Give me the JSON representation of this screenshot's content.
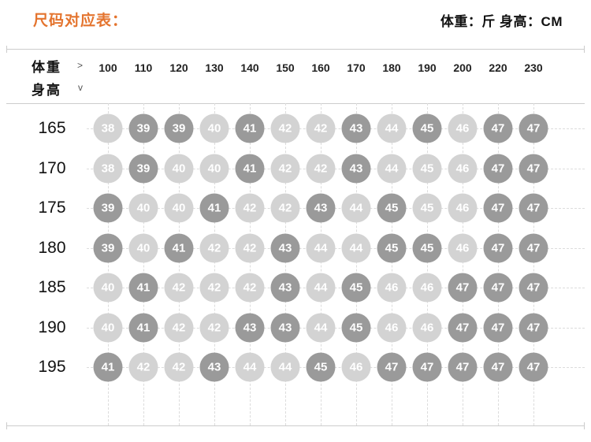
{
  "header": {
    "title": "尺码对应表：",
    "units": "体重：斤 身高：CM"
  },
  "table": {
    "weight_label": "体重",
    "weight_arrow": ">",
    "height_label": "身高",
    "height_arrow": "v"
  },
  "colors": {
    "accent": "#e4742e",
    "circle_light": "#d3d3d3",
    "circle_dark": "#9a9a9a",
    "circle_text": "#ffffff",
    "grid_line": "#dcdcdc",
    "border_line": "#cccccc"
  },
  "chart_data": {
    "type": "table",
    "title": "尺码对应表",
    "x_axis_label": "体重",
    "x_axis_unit": "斤",
    "y_axis_label": "身高",
    "y_axis_unit": "CM",
    "x_categories": [
      "100",
      "110",
      "120",
      "130",
      "140",
      "150",
      "160",
      "170",
      "180",
      "190",
      "200",
      "220",
      "230"
    ],
    "y_categories": [
      "165",
      "170",
      "175",
      "180",
      "185",
      "190",
      "195"
    ],
    "values": [
      [
        38,
        39,
        39,
        40,
        41,
        42,
        42,
        43,
        44,
        45,
        46,
        47,
        47
      ],
      [
        38,
        39,
        40,
        40,
        41,
        42,
        42,
        43,
        44,
        45,
        46,
        47,
        47
      ],
      [
        39,
        40,
        40,
        41,
        42,
        42,
        43,
        44,
        45,
        45,
        46,
        47,
        47
      ],
      [
        39,
        40,
        41,
        42,
        42,
        43,
        44,
        44,
        45,
        45,
        46,
        47,
        47
      ],
      [
        40,
        41,
        42,
        42,
        42,
        43,
        44,
        45,
        46,
        46,
        47,
        47,
        47
      ],
      [
        40,
        41,
        42,
        42,
        43,
        43,
        44,
        45,
        46,
        46,
        47,
        47,
        47
      ],
      [
        41,
        42,
        42,
        43,
        44,
        44,
        45,
        46,
        47,
        47,
        47,
        47,
        47
      ]
    ],
    "shades": [
      [
        "l",
        "d",
        "d",
        "l",
        "d",
        "l",
        "l",
        "d",
        "l",
        "d",
        "l",
        "d",
        "d"
      ],
      [
        "l",
        "d",
        "l",
        "l",
        "d",
        "l",
        "l",
        "d",
        "l",
        "l",
        "l",
        "d",
        "d"
      ],
      [
        "d",
        "l",
        "l",
        "d",
        "l",
        "l",
        "d",
        "l",
        "d",
        "l",
        "l",
        "d",
        "d"
      ],
      [
        "d",
        "l",
        "d",
        "l",
        "l",
        "d",
        "l",
        "l",
        "d",
        "d",
        "l",
        "d",
        "d"
      ],
      [
        "l",
        "d",
        "l",
        "l",
        "l",
        "d",
        "l",
        "d",
        "l",
        "l",
        "d",
        "d",
        "d"
      ],
      [
        "l",
        "d",
        "l",
        "l",
        "d",
        "d",
        "l",
        "d",
        "l",
        "l",
        "d",
        "d",
        "d"
      ],
      [
        "d",
        "l",
        "l",
        "d",
        "l",
        "l",
        "d",
        "l",
        "d",
        "d",
        "d",
        "d",
        "d"
      ]
    ],
    "grid": "dashed"
  }
}
